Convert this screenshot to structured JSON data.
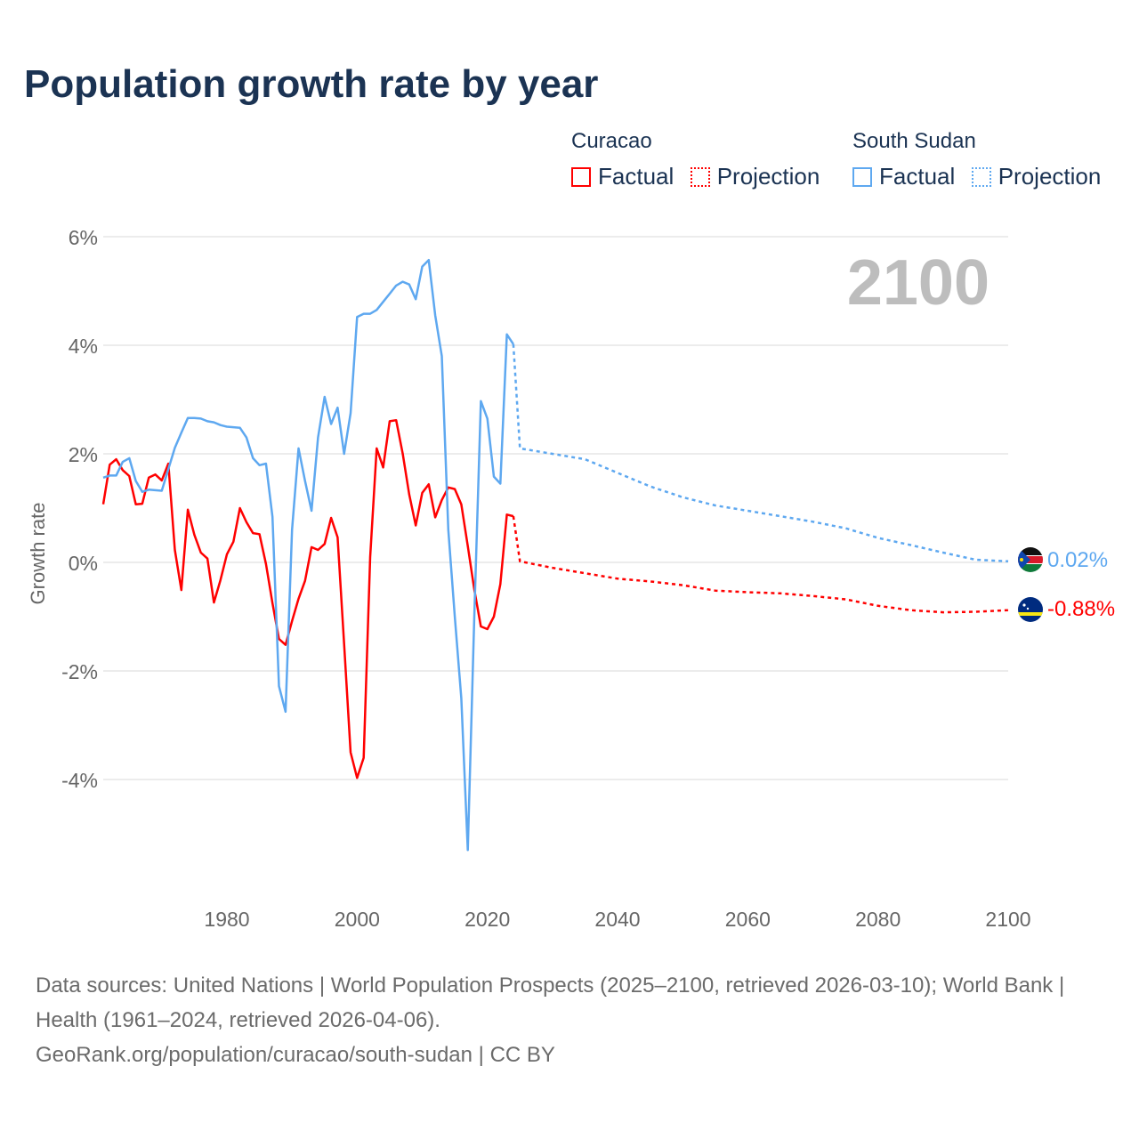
{
  "title": "Population growth rate by year",
  "legend": {
    "groups": [
      {
        "name": "Curacao",
        "color": "#ff0000",
        "factual": "Factual",
        "projection": "Projection"
      },
      {
        "name": "South Sudan",
        "color": "#5ea8f0",
        "factual": "Factual",
        "projection": "Projection"
      }
    ]
  },
  "year_overlay": "2100",
  "end_labels": {
    "curacao": "-0.88%",
    "south_sudan": "0.02%"
  },
  "footer": {
    "sources": "Data sources: United Nations | World Population Prospects (2025–2100, retrieved 2026-03-10); World Bank | Health (1961–2024, retrieved 2026-04-06).",
    "link": "GeoRank.org/population/curacao/south-sudan | CC BY"
  },
  "chart_data": {
    "type": "line",
    "title": "Population growth rate by year",
    "xlabel": "",
    "ylabel": "Growth rate",
    "xlim": [
      1961,
      2100
    ],
    "ylim": [
      -6,
      6
    ],
    "x_ticks": [
      1980,
      2000,
      2020,
      2040,
      2060,
      2080,
      2100
    ],
    "y_ticks": [
      -4,
      -2,
      0,
      2,
      4,
      6
    ],
    "y_tick_labels": [
      "-4%",
      "-2%",
      "0%",
      "2%",
      "4%",
      "6%"
    ],
    "grid": true,
    "legend_position": "top-right",
    "series": [
      {
        "name": "Curacao",
        "color": "#ff0000",
        "factual": {
          "x": [
            1961,
            1962,
            1963,
            1964,
            1965,
            1966,
            1967,
            1968,
            1969,
            1970,
            1971,
            1972,
            1973,
            1974,
            1975,
            1976,
            1977,
            1978,
            1979,
            1980,
            1981,
            1982,
            1983,
            1984,
            1985,
            1986,
            1987,
            1988,
            1989,
            1990,
            1991,
            1992,
            1993,
            1994,
            1995,
            1996,
            1997,
            1998,
            1999,
            2000,
            2001,
            2002,
            2003,
            2004,
            2005,
            2006,
            2007,
            2008,
            2009,
            2010,
            2011,
            2012,
            2013,
            2014,
            2015,
            2016,
            2017,
            2018,
            2019,
            2020,
            2021,
            2022,
            2023,
            2024
          ],
          "y": [
            1.07,
            1.8,
            1.9,
            1.7,
            1.59,
            1.07,
            1.08,
            1.56,
            1.62,
            1.51,
            1.82,
            0.23,
            -0.51,
            0.97,
            0.51,
            0.18,
            0.07,
            -0.74,
            -0.33,
            0.15,
            0.38,
            1.0,
            0.74,
            0.54,
            0.52,
            -0.03,
            -0.75,
            -1.41,
            -1.52,
            -1.08,
            -0.67,
            -0.34,
            0.28,
            0.23,
            0.34,
            0.82,
            0.46,
            -1.5,
            -3.5,
            -3.97,
            -3.6,
            0.1,
            2.1,
            1.75,
            2.6,
            2.62,
            2.0,
            1.25,
            0.68,
            1.28,
            1.44,
            0.83,
            1.15,
            1.38,
            1.35,
            1.07,
            0.3,
            -0.5,
            -1.18,
            -1.23,
            -1.0,
            -0.4,
            0.88,
            0.85
          ]
        },
        "projection": {
          "x": [
            2024,
            2025,
            2030,
            2035,
            2040,
            2045,
            2050,
            2055,
            2060,
            2065,
            2070,
            2075,
            2080,
            2085,
            2090,
            2095,
            2100
          ],
          "y": [
            0.85,
            0.02,
            -0.1,
            -0.2,
            -0.3,
            -0.35,
            -0.42,
            -0.52,
            -0.55,
            -0.57,
            -0.62,
            -0.68,
            -0.8,
            -0.88,
            -0.92,
            -0.91,
            -0.88
          ]
        }
      },
      {
        "name": "South Sudan",
        "color": "#5ea8f0",
        "factual": {
          "x": [
            1961,
            1962,
            1963,
            1964,
            1965,
            1966,
            1967,
            1968,
            1969,
            1970,
            1971,
            1972,
            1973,
            1974,
            1975,
            1976,
            1977,
            1978,
            1979,
            1980,
            1981,
            1982,
            1983,
            1984,
            1985,
            1986,
            1987,
            1988,
            1989,
            1990,
            1991,
            1992,
            1993,
            1994,
            1995,
            1996,
            1997,
            1998,
            1999,
            2000,
            2001,
            2002,
            2003,
            2004,
            2005,
            2006,
            2007,
            2008,
            2009,
            2010,
            2011,
            2012,
            2013,
            2014,
            2015,
            2016,
            2017,
            2018,
            2019,
            2020,
            2021,
            2022,
            2023,
            2024
          ],
          "y": [
            1.56,
            1.6,
            1.6,
            1.85,
            1.92,
            1.5,
            1.3,
            1.34,
            1.33,
            1.32,
            1.72,
            2.11,
            2.39,
            2.66,
            2.66,
            2.65,
            2.6,
            2.58,
            2.53,
            2.5,
            2.49,
            2.48,
            2.3,
            1.92,
            1.79,
            1.82,
            0.84,
            -2.28,
            -2.75,
            0.6,
            2.1,
            1.5,
            0.95,
            2.3,
            3.05,
            2.55,
            2.85,
            2.0,
            2.75,
            4.52,
            4.58,
            4.58,
            4.65,
            4.8,
            4.95,
            5.1,
            5.17,
            5.12,
            4.85,
            5.45,
            5.57,
            4.55,
            3.8,
            0.6,
            -1.0,
            -2.5,
            -5.3,
            -1.0,
            2.97,
            2.65,
            1.58,
            1.45,
            4.2,
            4.02
          ]
        },
        "projection": {
          "x": [
            2024,
            2025,
            2030,
            2035,
            2040,
            2045,
            2050,
            2055,
            2060,
            2065,
            2070,
            2075,
            2080,
            2085,
            2090,
            2095,
            2100
          ],
          "y": [
            4.02,
            2.1,
            2.0,
            1.9,
            1.65,
            1.4,
            1.2,
            1.05,
            0.95,
            0.85,
            0.75,
            0.63,
            0.45,
            0.32,
            0.18,
            0.05,
            0.02
          ]
        }
      }
    ]
  }
}
